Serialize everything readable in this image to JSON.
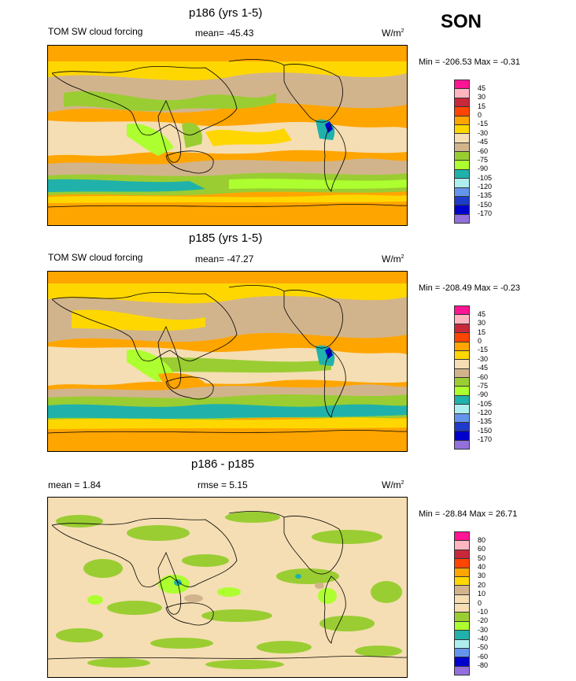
{
  "season": "SON",
  "panels": [
    {
      "title": "p186 (yrs 1-5)",
      "left_label": "TOM SW cloud forcing",
      "mid_label": "mean= -45.43",
      "units": "W/m",
      "units_sup": "2",
      "minmax": "Min = -206.53 Max =  -0.31",
      "colorbar": {
        "labels": [
          "45",
          "30",
          "15",
          "0",
          "-15",
          "-30",
          "-45",
          "-60",
          "-75",
          "-90",
          "-105",
          "-120",
          "-135",
          "-150",
          "-170"
        ],
        "colors": [
          "#ff1493",
          "#ffb6c1",
          "#c8283c",
          "#ff4500",
          "#ffa500",
          "#ffd700",
          "#f5deb3",
          "#d2b48c",
          "#9acd32",
          "#adff2f",
          "#20b2aa",
          "#afeeee",
          "#6495ed",
          "#1e3cc8",
          "#0000cd",
          "#9370db"
        ]
      }
    },
    {
      "title": "p185 (yrs 1-5)",
      "left_label": "TOM SW cloud forcing",
      "mid_label": "mean= -47.27",
      "units": "W/m",
      "units_sup": "2",
      "minmax": "Min = -208.49 Max =  -0.23",
      "colorbar": {
        "labels": [
          "45",
          "30",
          "15",
          "0",
          "-15",
          "-30",
          "-45",
          "-60",
          "-75",
          "-90",
          "-105",
          "-120",
          "-135",
          "-150",
          "-170"
        ],
        "colors": [
          "#ff1493",
          "#ffb6c1",
          "#c8283c",
          "#ff4500",
          "#ffa500",
          "#ffd700",
          "#f5deb3",
          "#d2b48c",
          "#9acd32",
          "#adff2f",
          "#20b2aa",
          "#afeeee",
          "#6495ed",
          "#1e3cc8",
          "#0000cd",
          "#9370db"
        ]
      }
    },
    {
      "title": "p186 - p185",
      "left_label": "mean =   1.84",
      "mid_label": "rmse =   5.15",
      "units": "W/m",
      "units_sup": "2",
      "minmax": "Min = -28.84 Max =  26.71",
      "colorbar": {
        "labels": [
          "80",
          "60",
          "50",
          "40",
          "30",
          "20",
          "10",
          "0",
          "-10",
          "-20",
          "-30",
          "-40",
          "-50",
          "-60",
          "-80"
        ],
        "colors": [
          "#ff1493",
          "#ffb6c1",
          "#c8283c",
          "#ff4500",
          "#ffa500",
          "#ffd700",
          "#d2b48c",
          "#f5deb3",
          "#f5deb3",
          "#9acd32",
          "#adff2f",
          "#20b2aa",
          "#afeeee",
          "#6495ed",
          "#0000cd",
          "#9370db"
        ]
      }
    }
  ],
  "chart_data": [
    {
      "type": "heatmap",
      "title": "p186 (yrs 1-5)",
      "subtitle": "TOM SW cloud forcing",
      "mean": -45.43,
      "units": "W/m2",
      "min": -206.53,
      "max": -0.31,
      "levels": [
        45,
        30,
        15,
        0,
        -15,
        -30,
        -45,
        -60,
        -75,
        -90,
        -105,
        -120,
        -135,
        -150,
        -170
      ]
    },
    {
      "type": "heatmap",
      "title": "p185 (yrs 1-5)",
      "subtitle": "TOM SW cloud forcing",
      "mean": -47.27,
      "units": "W/m2",
      "min": -208.49,
      "max": -0.23,
      "levels": [
        45,
        30,
        15,
        0,
        -15,
        -30,
        -45,
        -60,
        -75,
        -90,
        -105,
        -120,
        -135,
        -150,
        -170
      ]
    },
    {
      "type": "heatmap",
      "title": "p186 - p185",
      "mean": 1.84,
      "rmse": 5.15,
      "units": "W/m2",
      "min": -28.84,
      "max": 26.71,
      "levels": [
        80,
        60,
        50,
        40,
        30,
        20,
        10,
        0,
        -10,
        -20,
        -30,
        -40,
        -50,
        -60,
        -80
      ]
    }
  ]
}
